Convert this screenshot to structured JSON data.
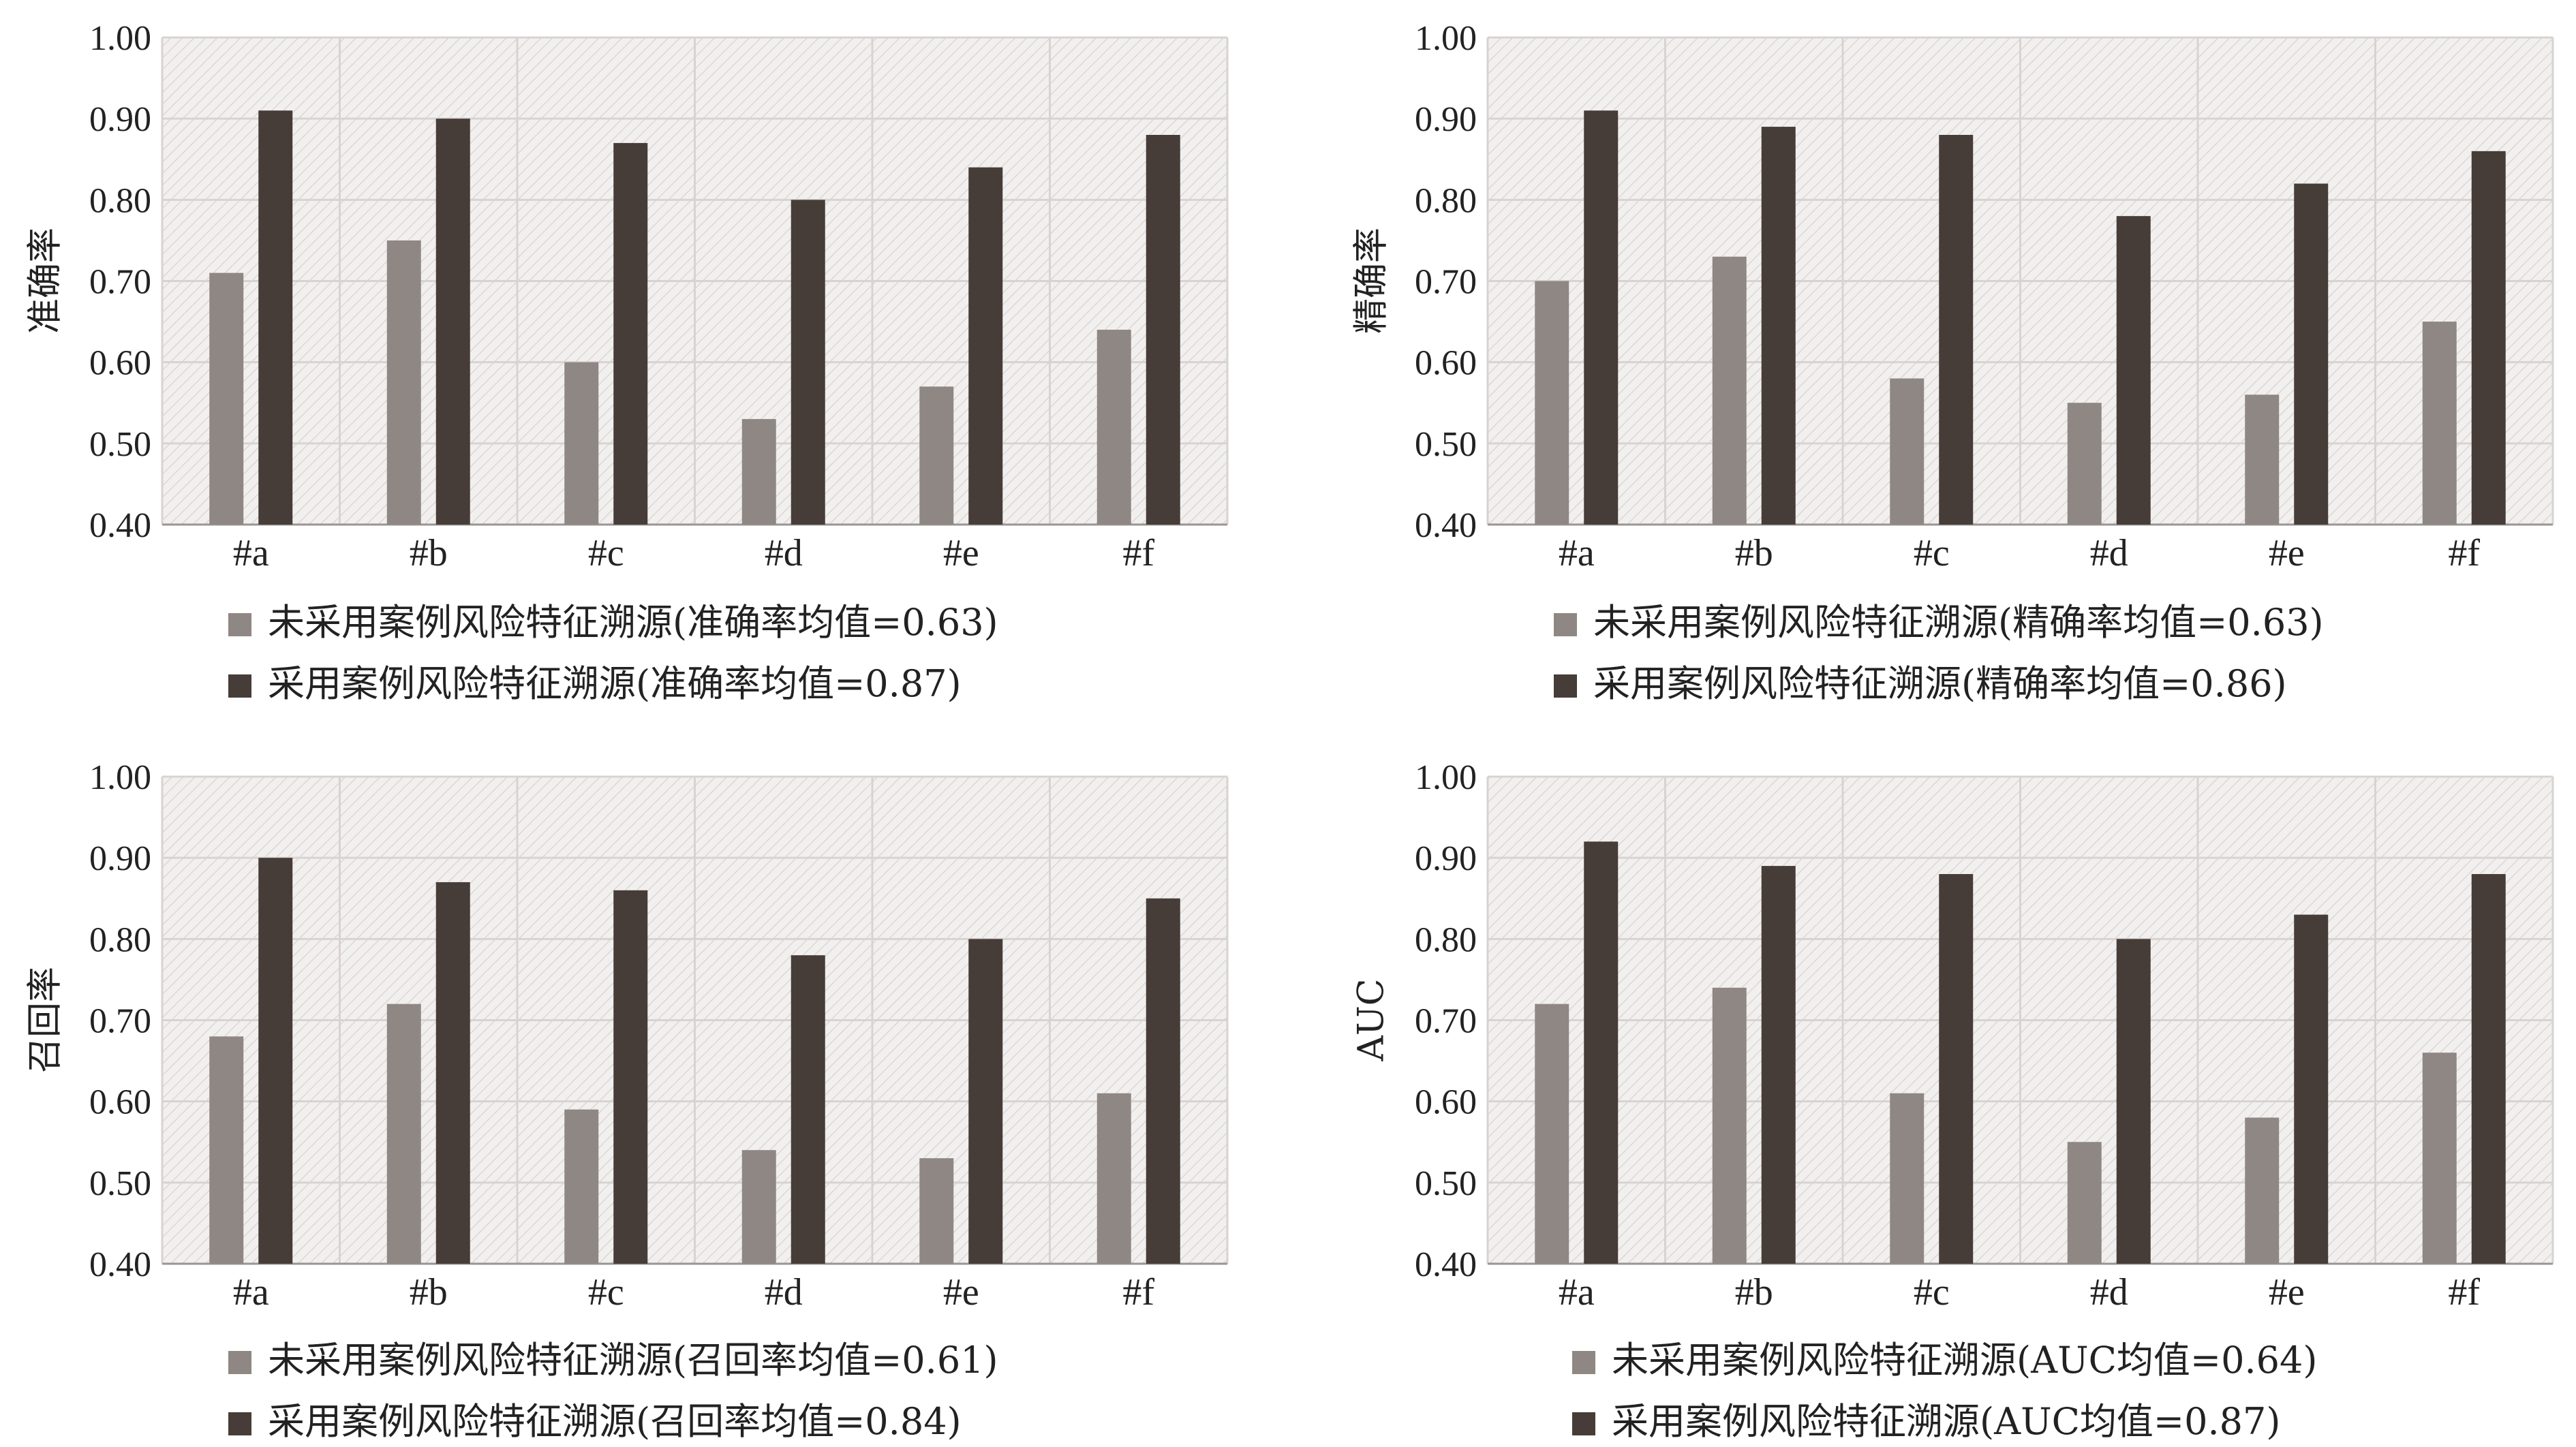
{
  "colors": {
    "series_not_used": "#8f8783",
    "series_used": "#463c38",
    "plot_background": "#f2f0ef",
    "hatch": "#dcd7d5",
    "grid": "#d8d3d1",
    "axis": "#9a9492",
    "text": "#222222"
  },
  "chart_data": [
    {
      "type": "bar",
      "ylabel": "准确率",
      "xlabel": "",
      "title": "",
      "ylim": [
        0.4,
        1.0
      ],
      "yticks": [
        "0.40",
        "0.50",
        "0.60",
        "0.70",
        "0.80",
        "0.90",
        "1.00"
      ],
      "grid": true,
      "legend_position": "bottom",
      "categories": [
        "#a",
        "#b",
        "#c",
        "#d",
        "#e",
        "#f"
      ],
      "series": [
        {
          "name": "未采用案例风险特征溯源(准确率均值=0.63)",
          "values": [
            0.71,
            0.75,
            0.6,
            0.53,
            0.57,
            0.64
          ]
        },
        {
          "name": "采用案例风险特征溯源(准确率均值=0.87)",
          "values": [
            0.91,
            0.9,
            0.87,
            0.8,
            0.84,
            0.88
          ]
        }
      ]
    },
    {
      "type": "bar",
      "ylabel": "精确率",
      "xlabel": "",
      "title": "",
      "ylim": [
        0.4,
        1.0
      ],
      "yticks": [
        "0.40",
        "0.50",
        "0.60",
        "0.70",
        "0.80",
        "0.90",
        "1.00"
      ],
      "grid": true,
      "legend_position": "bottom",
      "categories": [
        "#a",
        "#b",
        "#c",
        "#d",
        "#e",
        "#f"
      ],
      "series": [
        {
          "name": "未采用案例风险特征溯源(精确率均值=0.63)",
          "values": [
            0.7,
            0.73,
            0.58,
            0.55,
            0.56,
            0.65
          ]
        },
        {
          "name": "采用案例风险特征溯源(精确率均值=0.86)",
          "values": [
            0.91,
            0.89,
            0.88,
            0.78,
            0.82,
            0.86
          ]
        }
      ]
    },
    {
      "type": "bar",
      "ylabel": "召回率",
      "xlabel": "",
      "title": "",
      "ylim": [
        0.4,
        1.0
      ],
      "yticks": [
        "0.40",
        "0.50",
        "0.60",
        "0.70",
        "0.80",
        "0.90",
        "1.00"
      ],
      "grid": true,
      "legend_position": "bottom",
      "categories": [
        "#a",
        "#b",
        "#c",
        "#d",
        "#e",
        "#f"
      ],
      "series": [
        {
          "name": "未采用案例风险特征溯源(召回率均值=0.61)",
          "values": [
            0.68,
            0.72,
            0.59,
            0.54,
            0.53,
            0.61
          ]
        },
        {
          "name": "采用案例风险特征溯源(召回率均值=0.84)",
          "values": [
            0.9,
            0.87,
            0.86,
            0.78,
            0.8,
            0.85
          ]
        }
      ]
    },
    {
      "type": "bar",
      "ylabel": "AUC",
      "xlabel": "",
      "title": "",
      "ylim": [
        0.4,
        1.0
      ],
      "yticks": [
        "0.40",
        "0.50",
        "0.60",
        "0.70",
        "0.80",
        "0.90",
        "1.00"
      ],
      "grid": true,
      "legend_position": "bottom",
      "categories": [
        "#a",
        "#b",
        "#c",
        "#d",
        "#e",
        "#f"
      ],
      "series": [
        {
          "name": "未采用案例风险特征溯源(AUC均值=0.64)",
          "values": [
            0.72,
            0.74,
            0.61,
            0.55,
            0.58,
            0.66
          ]
        },
        {
          "name": "采用案例风险特征溯源(AUC均值=0.87)",
          "values": [
            0.92,
            0.89,
            0.88,
            0.8,
            0.83,
            0.88
          ]
        }
      ]
    }
  ]
}
